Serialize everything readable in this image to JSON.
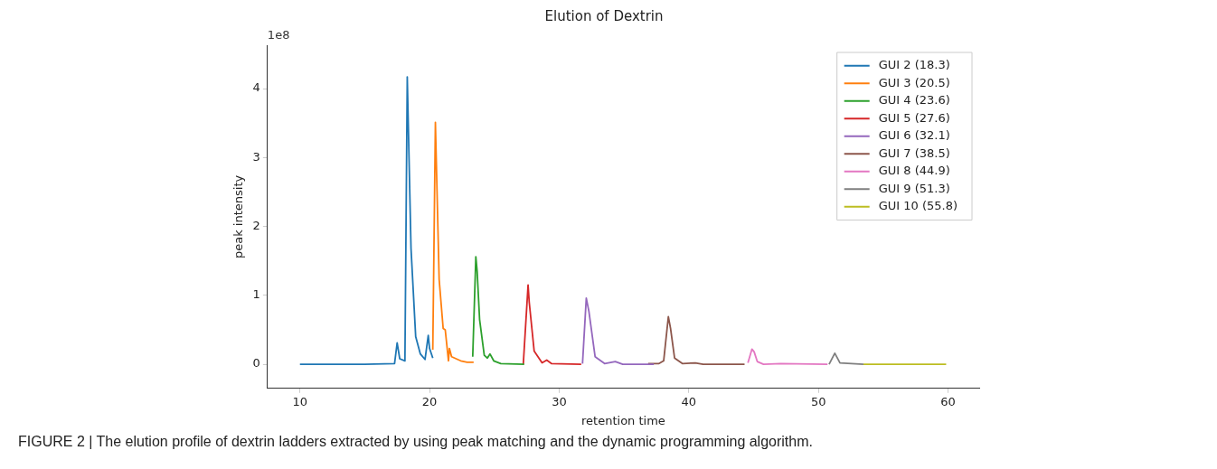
{
  "chart_data": {
    "type": "line",
    "title": "Elution of Dextrin",
    "xlabel": "retention time",
    "ylabel": "peak intensity",
    "annotations": [
      "1e8",
      "FIGURE 2 | The elution profile of dextrin ladders extracted by using peak matching and the dynamic programming algorithm."
    ],
    "xlim": [
      7.5,
      62.4
    ],
    "xticks": [
      10,
      20,
      30,
      40,
      50,
      60
    ],
    "ylim": [
      -0.35,
      4.63
    ],
    "yticks": [
      0,
      1,
      2,
      3,
      4
    ],
    "grid": false,
    "legend": "top right",
    "marker": "none",
    "line_style": "solid",
    "series": [
      {
        "name": "GUI 2 (18.3)",
        "color": "#1f77b4",
        "x": [
          10,
          15,
          17.3,
          17.5,
          17.7,
          18.1,
          18.28,
          18.57,
          18.93,
          19.29,
          19.65,
          19.9,
          20.0,
          20.25
        ],
        "values": [
          0,
          0,
          0.01,
          0.31,
          0.08,
          0.05,
          4.17,
          1.68,
          0.4,
          0.15,
          0.07,
          0.42,
          0.23,
          0.09
        ]
      },
      {
        "name": "GUI 3 (20.5)",
        "color": "#ff7f0e",
        "x": [
          20.25,
          20.45,
          20.74,
          21.05,
          21.21,
          21.46,
          21.53,
          21.7,
          22.4,
          22.9,
          23.4
        ],
        "values": [
          0.21,
          3.51,
          1.23,
          0.52,
          0.5,
          0.05,
          0.23,
          0.11,
          0.05,
          0.03,
          0.03
        ]
      },
      {
        "name": "GUI 4 (23.6)",
        "color": "#2ca02c",
        "x": [
          23.33,
          23.57,
          23.67,
          23.86,
          24.22,
          24.46,
          24.66,
          24.95,
          25.5,
          27.3
        ],
        "values": [
          0.11,
          1.56,
          1.35,
          0.65,
          0.13,
          0.09,
          0.15,
          0.05,
          0.01,
          0
        ]
      },
      {
        "name": "GUI 5 (27.6)",
        "color": "#d62728",
        "x": [
          27.23,
          27.6,
          27.69,
          28.07,
          28.68,
          29.04,
          29.4,
          31.7
        ],
        "values": [
          0,
          1.15,
          0.9,
          0.19,
          0.02,
          0.06,
          0.01,
          0
        ]
      },
      {
        "name": "GUI 6 (32.1)",
        "color": "#9467bd",
        "x": [
          31.8,
          32.09,
          32.29,
          32.77,
          33.5,
          34.33,
          34.9,
          37.3
        ],
        "values": [
          0.01,
          0.96,
          0.77,
          0.11,
          0.01,
          0.04,
          0,
          0
        ]
      },
      {
        "name": "GUI 7 (38.5)",
        "color": "#8c564b",
        "x": [
          36.86,
          37.7,
          38.06,
          38.42,
          38.59,
          38.9,
          39.5,
          40.5,
          41.1,
          44.3
        ],
        "values": [
          0.01,
          0.01,
          0.05,
          0.69,
          0.52,
          0.09,
          0.01,
          0.02,
          0,
          0
        ]
      },
      {
        "name": "GUI 8 (44.9)",
        "color": "#e377c2",
        "x": [
          44.56,
          44.87,
          45.04,
          45.28,
          45.76,
          47.1,
          50.7
        ],
        "values": [
          0.02,
          0.22,
          0.18,
          0.04,
          0,
          0.01,
          0
        ]
      },
      {
        "name": "GUI 9 (51.3)",
        "color": "#7f7f7f",
        "x": [
          50.82,
          51.26,
          51.66,
          53.47
        ],
        "values": [
          0,
          0.16,
          0.02,
          0
        ]
      },
      {
        "name": "GUI 10 (55.8)",
        "color": "#bcbd22",
        "x": [
          53.47,
          59.85
        ],
        "values": [
          0,
          0
        ]
      }
    ]
  }
}
